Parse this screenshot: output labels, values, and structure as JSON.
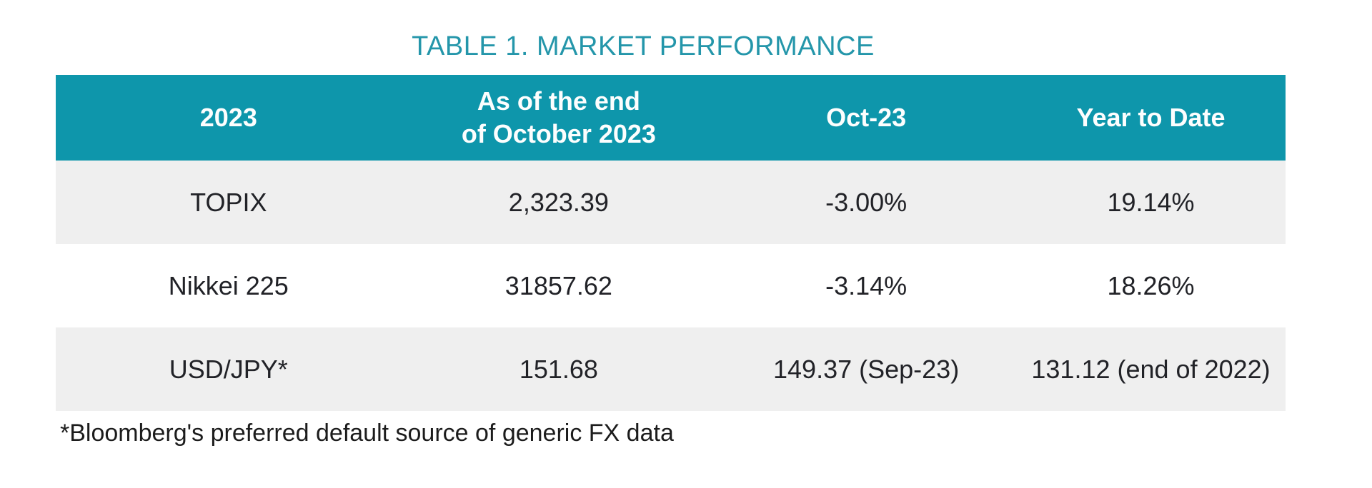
{
  "title": {
    "text": "TABLE 1. MARKET PERFORMANCE",
    "color": "#2496aa"
  },
  "table": {
    "header": {
      "background_color": "#0e96ab",
      "text_color": "#ffffff",
      "columns": [
        {
          "label": "2023"
        },
        {
          "line1": "As of the end",
          "line2": "of October 2023"
        },
        {
          "label": "Oct-23"
        },
        {
          "label": "Year to Date"
        }
      ]
    },
    "row_alt_background": "#efefef",
    "rows": [
      {
        "cells": [
          "TOPIX",
          "2,323.39",
          "-3.00%",
          "19.14%"
        ]
      },
      {
        "cells": [
          "Nikkei 225",
          "31857.62",
          "-3.14%",
          "18.26%"
        ]
      },
      {
        "cells": [
          "USD/JPY*",
          "151.68",
          "149.37 (Sep-23)",
          "131.12 (end of 2022)"
        ]
      }
    ],
    "footnote": "*Bloomberg's preferred default source of generic FX data"
  },
  "chart_data": {
    "type": "table",
    "title": "TABLE 1. MARKET PERFORMANCE",
    "columns": [
      "2023",
      "As of the end of October 2023",
      "Oct-23",
      "Year to Date"
    ],
    "rows": [
      [
        "TOPIX",
        "2,323.39",
        "-3.00%",
        "19.14%"
      ],
      [
        "Nikkei 225",
        "31857.62",
        "-3.14%",
        "18.26%"
      ],
      [
        "USD/JPY*",
        "151.68",
        "149.37 (Sep-23)",
        "131.12 (end of 2022)"
      ]
    ],
    "footnote": "*Bloomberg's preferred default source of generic FX data"
  }
}
